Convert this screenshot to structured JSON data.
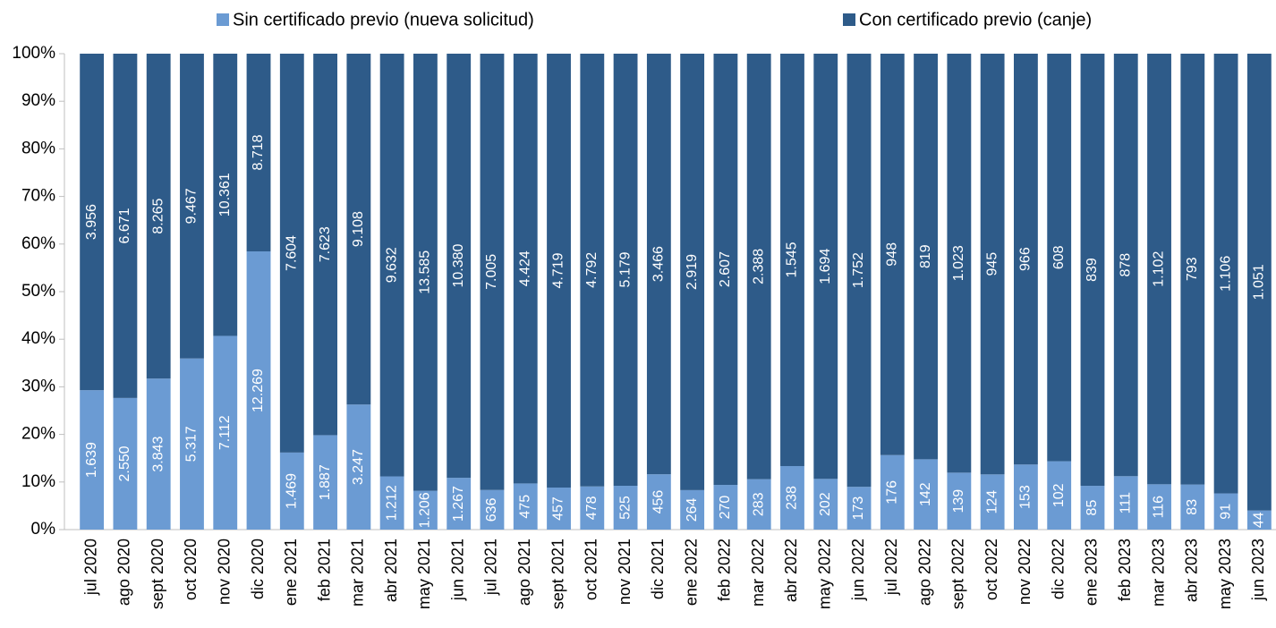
{
  "chart_data": {
    "type": "bar",
    "stack": "percent",
    "categories": [
      "jul 2020",
      "ago 2020",
      "sept 2020",
      "oct 2020",
      "nov 2020",
      "dic 2020",
      "ene 2021",
      "feb 2021",
      "mar 2021",
      "abr 2021",
      "may 2021",
      "jun 2021",
      "jul 2021",
      "ago 2021",
      "sept 2021",
      "oct 2021",
      "nov 2021",
      "dic 2021",
      "ene 2022",
      "feb 2022",
      "mar 2022",
      "abr 2022",
      "may 2022",
      "jun 2022",
      "jul 2022",
      "ago 2022",
      "sept 2022",
      "oct 2022",
      "nov 2022",
      "dic 2022",
      "ene 2023",
      "feb 2023",
      "mar 2023",
      "abr 2023",
      "may 2023",
      "jun 2023"
    ],
    "series": [
      {
        "name": "Sin certificado previo (nueva solicitud)",
        "color": "#6b9bd3",
        "values": [
          1639,
          2550,
          3843,
          5317,
          7112,
          12269,
          1469,
          1887,
          3247,
          1212,
          1206,
          1267,
          636,
          475,
          457,
          478,
          525,
          456,
          264,
          270,
          283,
          238,
          202,
          173,
          176,
          142,
          139,
          124,
          153,
          102,
          85,
          111,
          116,
          83,
          91,
          44
        ],
        "value_labels": [
          "1.639",
          "2.550",
          "3.843",
          "5.317",
          "7.112",
          "12.269",
          "1.469",
          "1.887",
          "3.247",
          "1.212",
          "1.206",
          "1.267",
          "636",
          "475",
          "457",
          "478",
          "525",
          "456",
          "264",
          "270",
          "283",
          "238",
          "202",
          "173",
          "176",
          "142",
          "139",
          "124",
          "153",
          "102",
          "85",
          "111",
          "116",
          "83",
          "91",
          "44"
        ]
      },
      {
        "name": "Con certificado previo (canje)",
        "color": "#2e5b89",
        "values": [
          3956,
          6671,
          8265,
          9467,
          10361,
          8718,
          7604,
          7623,
          9108,
          9632,
          13585,
          10380,
          7005,
          4424,
          4719,
          4792,
          5179,
          3466,
          2919,
          2607,
          2388,
          1545,
          1694,
          1752,
          948,
          819,
          1023,
          945,
          966,
          608,
          839,
          878,
          1102,
          793,
          1106,
          1051
        ],
        "value_labels": [
          "3.956",
          "6.671",
          "8.265",
          "9.467",
          "10.361",
          "8.718",
          "7.604",
          "7.623",
          "9.108",
          "9.632",
          "13.585",
          "10.380",
          "7.005",
          "4.424",
          "4.719",
          "4.792",
          "5.179",
          "3.466",
          "2.919",
          "2.607",
          "2.388",
          "1.545",
          "1.694",
          "1.752",
          "948",
          "819",
          "1.023",
          "945",
          "966",
          "608",
          "839",
          "878",
          "1.102",
          "793",
          "1.106",
          "1.051"
        ]
      }
    ],
    "ylim": [
      0,
      100
    ],
    "yticks": [
      {
        "value": 0,
        "label": "0%"
      },
      {
        "value": 10,
        "label": "10%"
      },
      {
        "value": 20,
        "label": "20%"
      },
      {
        "value": 30,
        "label": "30%"
      },
      {
        "value": 40,
        "label": "40%"
      },
      {
        "value": 50,
        "label": "50%"
      },
      {
        "value": 60,
        "label": "60%"
      },
      {
        "value": 70,
        "label": "70%"
      },
      {
        "value": 80,
        "label": "80%"
      },
      {
        "value": 90,
        "label": "90%"
      },
      {
        "value": 100,
        "label": "100%"
      }
    ],
    "grid": false,
    "legend": "top"
  }
}
